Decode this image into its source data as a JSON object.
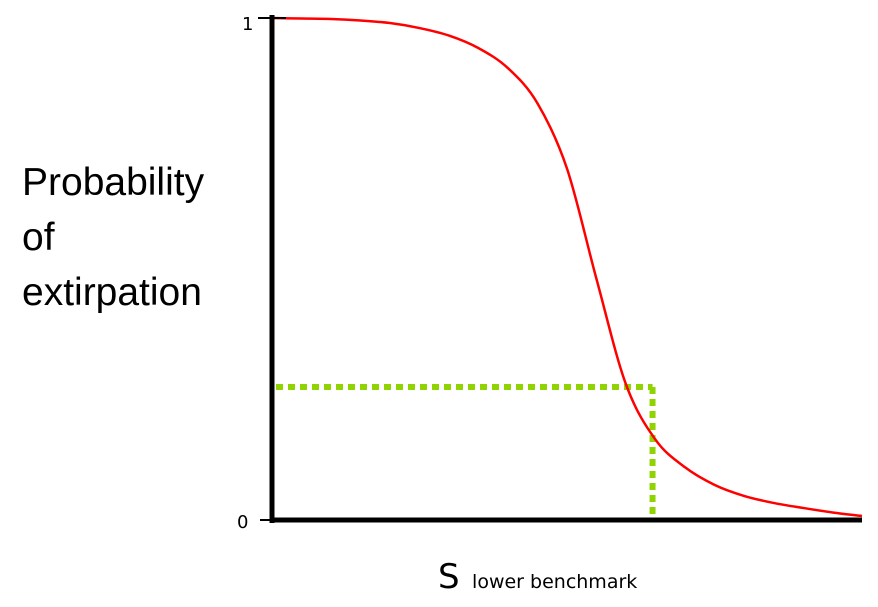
{
  "chart_data": {
    "type": "line",
    "title": "",
    "ylabel_lines": [
      "Probability",
      "of",
      "extirpation"
    ],
    "xlabel": {
      "main": "S",
      "subscript": "lower benchmark"
    },
    "y_ticks": [
      {
        "value": 1,
        "label": "1"
      },
      {
        "value": 0,
        "label": "0"
      }
    ],
    "ylim": [
      0,
      1
    ],
    "xlim": [
      0,
      1
    ],
    "grid": false,
    "series": [
      {
        "color": "#ff0000",
        "x": [
          0.0,
          0.05,
          0.1,
          0.15,
          0.2,
          0.25,
          0.3,
          0.35,
          0.4,
          0.45,
          0.5,
          0.55,
          0.6,
          0.65,
          0.7,
          0.75,
          0.8,
          0.85,
          0.9,
          0.95,
          1.0
        ],
        "y": [
          1.0,
          0.999,
          0.998,
          0.995,
          0.99,
          0.98,
          0.965,
          0.94,
          0.9,
          0.83,
          0.7,
          0.48,
          0.27,
          0.16,
          0.105,
          0.07,
          0.048,
          0.034,
          0.024,
          0.015,
          0.008
        ]
      }
    ],
    "benchmark": {
      "color": "#8fd400",
      "x": 0.645,
      "y": 0.265
    },
    "axis_color": "#000000"
  }
}
